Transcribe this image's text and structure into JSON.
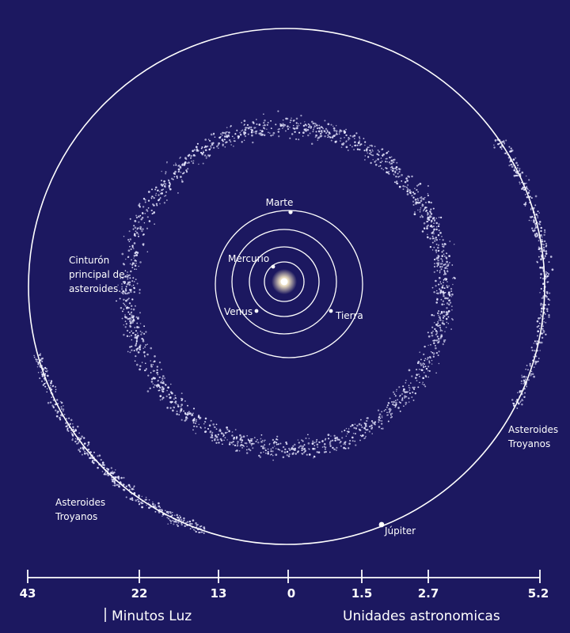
{
  "colors": {
    "background": "#1c1860",
    "line": "#ffffff",
    "asteroid": "#e8e8ff",
    "sun": "#fff6d8"
  },
  "labels": {
    "marte": "Marte",
    "mercurio": "Mercurio",
    "venus": "Venus",
    "tierra": "Tierra",
    "jupiter": "Júpiter",
    "main_belt": [
      "Cinturón",
      "principal de",
      "asteroides."
    ],
    "trojans_left": [
      "Asteroides",
      "Troyanos"
    ],
    "trojans_right": [
      "Asteroides",
      "Troyanos"
    ]
  },
  "scale": {
    "ticks": [
      "43",
      "22",
      "13",
      "0",
      "1.5",
      "2.7",
      "5.2"
    ],
    "left_unit": "Minutos Luz",
    "right_unit": "Unidades astronomicas"
  }
}
